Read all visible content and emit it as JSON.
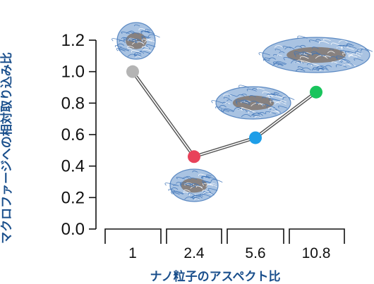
{
  "chart_data": {
    "type": "line",
    "title": "",
    "xlabel": "ナノ粒子のアスペクト比",
    "ylabel": "マクロファージへの相対取り込み比",
    "categories": [
      "1",
      "2.4",
      "5.6",
      "10.8"
    ],
    "y_ticks": [
      "0.0",
      "0.2",
      "0.4",
      "0.6",
      "0.8",
      "1.0",
      "1.2"
    ],
    "ylim": [
      0,
      1.2
    ],
    "grid": false,
    "legend": "none",
    "series": [
      {
        "values": [
          1.0,
          0.46,
          0.58,
          0.87
        ],
        "marker_colors": [
          "#b4b4b4",
          "#e8425a",
          "#1e9ee8",
          "#19c45c"
        ],
        "line_color": "#555555"
      }
    ],
    "particle_colors": {
      "fiber": "#3f74b8",
      "core": "#6b4a2e"
    }
  }
}
